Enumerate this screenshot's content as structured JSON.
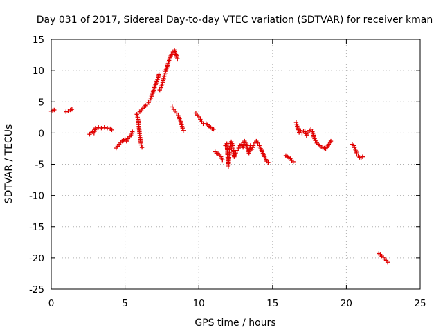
{
  "chart_data": {
    "type": "scatter",
    "title": "Day 031 of 2017, Sidereal Day-to-day VTEC variation (SDTVAR) for receiver kman",
    "xlabel": "GPS time / hours",
    "ylabel": "SDTVAR / TECUs",
    "xlim": [
      0,
      25
    ],
    "ylim": [
      -25,
      15
    ],
    "x_ticks": [
      0,
      5,
      10,
      15,
      20,
      25
    ],
    "x_tick_labels": [
      "0",
      "5",
      "10",
      "15",
      "20",
      "25"
    ],
    "y_ticks": [
      15,
      10,
      5,
      0,
      -5,
      -10,
      -15,
      -20,
      -25
    ],
    "y_tick_labels": [
      "15",
      "10",
      "5",
      "0",
      "-5",
      "-10",
      "-15",
      "-20",
      "-25"
    ],
    "grid": true,
    "marker": "+",
    "color": "#e00000",
    "segments": [
      [
        [
          0.0,
          3.5
        ],
        [
          0.1,
          3.6
        ],
        [
          0.2,
          3.7
        ]
      ],
      [
        [
          1.0,
          3.4
        ],
        [
          1.15,
          3.5
        ],
        [
          1.3,
          3.7
        ],
        [
          1.4,
          3.8
        ]
      ],
      [
        [
          2.6,
          -0.2
        ],
        [
          2.7,
          0.1
        ],
        [
          2.8,
          0.2
        ],
        [
          2.9,
          0.0
        ],
        [
          3.0,
          0.8
        ],
        [
          3.2,
          0.9
        ],
        [
          3.4,
          0.8
        ],
        [
          3.6,
          0.9
        ],
        [
          3.8,
          0.8
        ],
        [
          4.0,
          0.7
        ],
        [
          4.1,
          0.5
        ]
      ],
      [
        [
          4.4,
          -2.4
        ],
        [
          4.5,
          -2.1
        ],
        [
          4.6,
          -1.8
        ],
        [
          4.7,
          -1.5
        ],
        [
          4.8,
          -1.3
        ],
        [
          4.9,
          -1.2
        ],
        [
          5.0,
          -1.0
        ],
        [
          5.1,
          -1.3
        ],
        [
          5.2,
          -0.9
        ],
        [
          5.3,
          -0.6
        ],
        [
          5.4,
          -0.3
        ],
        [
          5.5,
          0.2
        ]
      ],
      [
        [
          5.8,
          3.0
        ],
        [
          5.85,
          2.5
        ],
        [
          5.9,
          1.9
        ],
        [
          5.95,
          0.8
        ],
        [
          6.0,
          -0.4
        ],
        [
          6.05,
          -1.3
        ],
        [
          6.1,
          -1.9
        ],
        [
          6.15,
          -2.3
        ]
      ],
      [
        [
          6.0,
          3.4
        ],
        [
          6.1,
          3.7
        ],
        [
          6.2,
          4.0
        ],
        [
          6.3,
          4.2
        ],
        [
          6.4,
          4.4
        ],
        [
          6.5,
          4.6
        ],
        [
          6.6,
          4.9
        ],
        [
          6.7,
          5.3
        ],
        [
          6.8,
          5.9
        ],
        [
          6.9,
          6.6
        ],
        [
          7.0,
          7.3
        ],
        [
          7.1,
          8.0
        ],
        [
          7.2,
          8.6
        ],
        [
          7.3,
          9.4
        ]
      ],
      [
        [
          7.35,
          6.9
        ],
        [
          7.45,
          7.3
        ],
        [
          7.55,
          8.1
        ],
        [
          7.65,
          9.0
        ],
        [
          7.75,
          9.9
        ],
        [
          7.85,
          10.6
        ],
        [
          7.95,
          11.4
        ],
        [
          8.05,
          12.1
        ],
        [
          8.15,
          12.6
        ],
        [
          8.25,
          13.0
        ],
        [
          8.35,
          13.3
        ],
        [
          8.55,
          11.9
        ]
      ],
      [
        [
          8.2,
          4.2
        ],
        [
          8.3,
          3.8
        ],
        [
          8.4,
          3.5
        ],
        [
          8.5,
          3.2
        ],
        [
          8.6,
          2.8
        ],
        [
          8.7,
          2.3
        ],
        [
          8.8,
          1.6
        ],
        [
          8.9,
          0.8
        ],
        [
          8.95,
          0.4
        ]
      ],
      [
        [
          9.8,
          3.2
        ],
        [
          9.9,
          2.9
        ],
        [
          10.0,
          2.6
        ],
        [
          10.1,
          2.2
        ],
        [
          10.2,
          1.8
        ],
        [
          10.3,
          1.5
        ],
        [
          10.5,
          1.5
        ],
        [
          10.6,
          1.3
        ],
        [
          10.7,
          1.1
        ],
        [
          10.8,
          0.9
        ],
        [
          10.9,
          0.7
        ],
        [
          11.0,
          0.6
        ]
      ],
      [
        [
          11.1,
          -3.0
        ],
        [
          11.2,
          -3.2
        ],
        [
          11.3,
          -3.3
        ],
        [
          11.4,
          -3.5
        ],
        [
          11.5,
          -3.8
        ],
        [
          11.6,
          -4.3
        ]
      ],
      [
        [
          11.8,
          -2.0
        ],
        [
          11.9,
          -1.7
        ],
        [
          12.0,
          -5.4
        ],
        [
          12.1,
          -2.4
        ],
        [
          12.2,
          -1.4
        ],
        [
          12.3,
          -2.0
        ],
        [
          12.4,
          -3.8
        ],
        [
          12.5,
          -3.2
        ],
        [
          12.6,
          -2.8
        ],
        [
          12.7,
          -2.4
        ],
        [
          12.8,
          -2.0
        ],
        [
          12.9,
          -1.8
        ],
        [
          13.0,
          -2.3
        ],
        [
          13.1,
          -1.3
        ],
        [
          13.2,
          -1.5
        ],
        [
          13.3,
          -2.5
        ],
        [
          13.4,
          -3.2
        ],
        [
          13.5,
          -2.0
        ]
      ],
      [
        [
          13.6,
          -2.6
        ],
        [
          13.7,
          -2.0
        ],
        [
          13.8,
          -1.6
        ],
        [
          13.9,
          -1.3
        ],
        [
          14.0,
          -1.6
        ],
        [
          14.1,
          -2.0
        ],
        [
          14.2,
          -2.5
        ],
        [
          14.3,
          -3.0
        ],
        [
          14.4,
          -3.5
        ],
        [
          14.5,
          -4.0
        ],
        [
          14.6,
          -4.5
        ],
        [
          14.7,
          -4.7
        ]
      ],
      [
        [
          15.9,
          -3.6
        ],
        [
          16.0,
          -3.8
        ],
        [
          16.1,
          -3.9
        ],
        [
          16.2,
          -4.1
        ],
        [
          16.3,
          -4.4
        ],
        [
          16.4,
          -4.6
        ]
      ],
      [
        [
          16.6,
          1.7
        ],
        [
          16.7,
          0.8
        ],
        [
          16.8,
          0.1
        ],
        [
          16.9,
          0.4
        ],
        [
          17.0,
          0.0
        ],
        [
          17.1,
          0.3
        ],
        [
          17.2,
          0.2
        ],
        [
          17.3,
          -0.4
        ],
        [
          17.4,
          0.0
        ],
        [
          17.5,
          0.4
        ],
        [
          17.6,
          0.6
        ],
        [
          17.7,
          0.2
        ],
        [
          17.8,
          -0.6
        ],
        [
          17.9,
          -1.2
        ],
        [
          18.0,
          -1.6
        ],
        [
          18.1,
          -1.8
        ],
        [
          18.2,
          -2.0
        ],
        [
          18.3,
          -2.2
        ],
        [
          18.4,
          -2.3
        ],
        [
          18.5,
          -2.4
        ],
        [
          18.6,
          -2.5
        ],
        [
          18.7,
          -2.3
        ],
        [
          18.8,
          -1.8
        ],
        [
          18.9,
          -1.5
        ],
        [
          18.95,
          -1.3
        ]
      ],
      [
        [
          20.4,
          -1.8
        ],
        [
          20.5,
          -2.0
        ],
        [
          20.6,
          -2.6
        ],
        [
          20.7,
          -3.3
        ],
        [
          20.8,
          -3.7
        ],
        [
          20.9,
          -3.9
        ],
        [
          21.0,
          -4.0
        ],
        [
          21.1,
          -3.8
        ]
      ],
      [
        [
          22.2,
          -19.3
        ],
        [
          22.3,
          -19.5
        ],
        [
          22.4,
          -19.7
        ],
        [
          22.5,
          -19.9
        ],
        [
          22.6,
          -20.2
        ],
        [
          22.7,
          -20.4
        ],
        [
          22.8,
          -20.7
        ]
      ]
    ]
  }
}
